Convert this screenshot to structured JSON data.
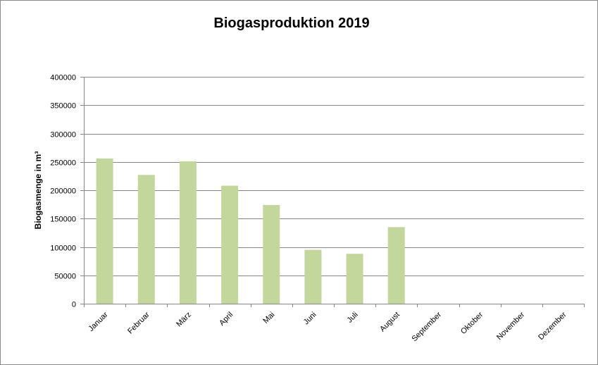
{
  "chart_data": {
    "type": "bar",
    "title": "Biogasproduktion 2019",
    "xlabel": "",
    "ylabel": "Biogasmenge in m³",
    "ylim": [
      0,
      400000
    ],
    "yticks": [
      0,
      50000,
      100000,
      150000,
      200000,
      250000,
      300000,
      350000,
      400000
    ],
    "grid": true,
    "legend": "none",
    "categories": [
      "Januar",
      "Februar",
      "März",
      "April",
      "Mai",
      "Juni",
      "Juli",
      "August",
      "September",
      "Oktober",
      "November",
      "Dezember"
    ],
    "values": [
      256000,
      227000,
      251000,
      208000,
      174000,
      95000,
      88000,
      135000,
      null,
      null,
      null,
      null
    ],
    "colors": {
      "bar": "#c3d69b",
      "grid": "#868686",
      "axis": "#868686"
    }
  }
}
